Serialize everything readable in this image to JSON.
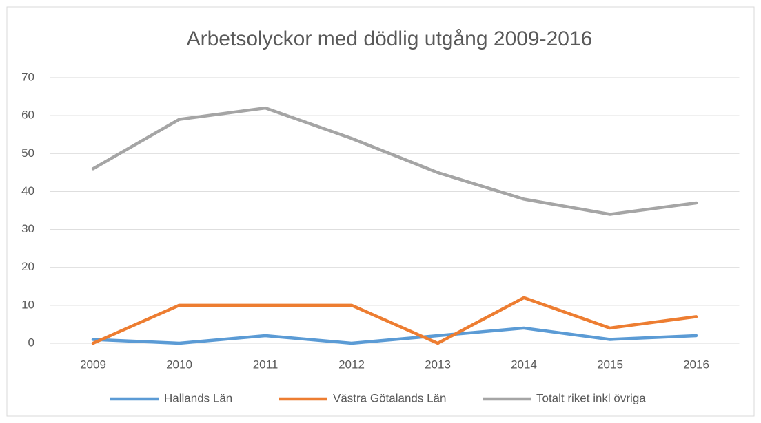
{
  "chart_data": {
    "type": "line",
    "title": "Arbetsolyckor med dödlig utgång 2009-2016",
    "categories": [
      "2009",
      "2010",
      "2011",
      "2012",
      "2013",
      "2014",
      "2015",
      "2016"
    ],
    "series": [
      {
        "name": "Hallands Län",
        "color": "#5b9bd5",
        "values": [
          1,
          0,
          2,
          0,
          2,
          4,
          1,
          2
        ]
      },
      {
        "name": "Västra Götalands Län",
        "color": "#ed7d31",
        "values": [
          0,
          10,
          10,
          10,
          0,
          12,
          4,
          7
        ]
      },
      {
        "name": "Totalt riket inkl övriga",
        "color": "#a5a5a5",
        "values": [
          46,
          59,
          62,
          54,
          45,
          38,
          34,
          37
        ]
      }
    ],
    "ylim": [
      0,
      70
    ],
    "yticks": [
      0,
      10,
      20,
      30,
      40,
      50,
      60,
      70
    ],
    "grid": true,
    "legend": "bottom"
  }
}
